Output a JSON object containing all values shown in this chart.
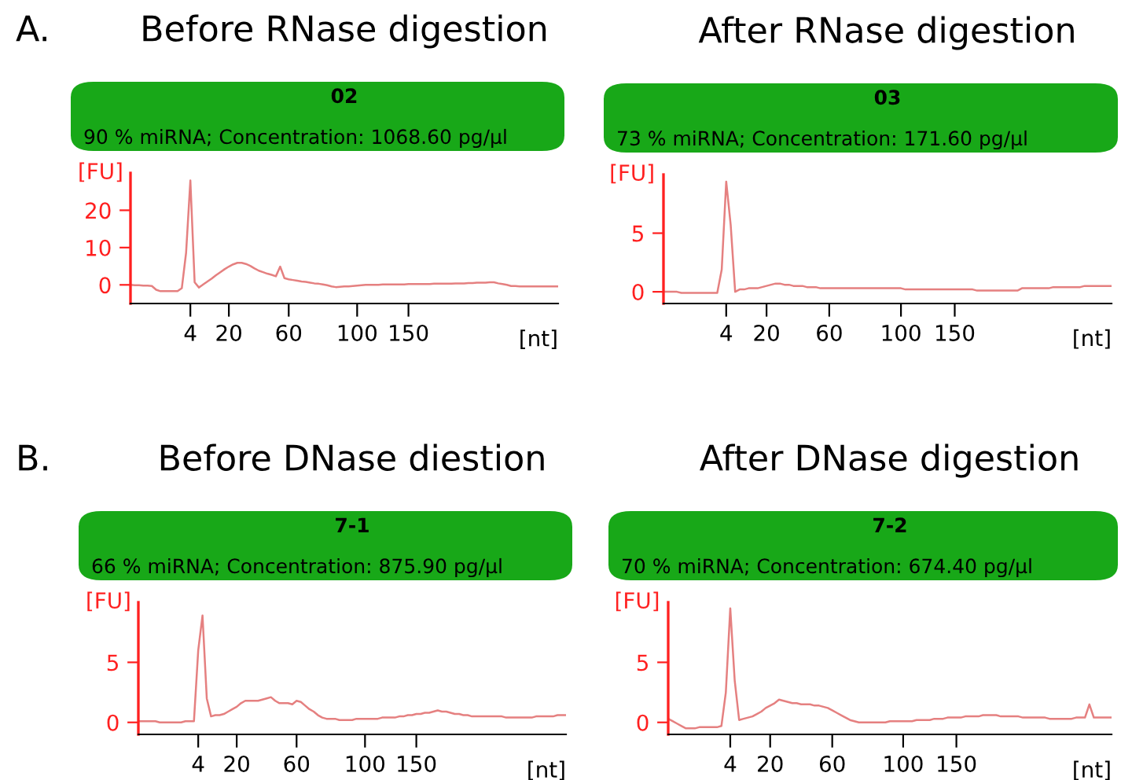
{
  "chart_data": [
    {
      "type": "line",
      "title": "Before RNase digestion",
      "subtitle": "02",
      "annotations": [
        "90 % miRNA; Concentration: 1068.60 pg/µl",
        "A."
      ],
      "xlabel": "[nt]",
      "ylabel": "[FU]",
      "categories": [
        null,
        null,
        null,
        null,
        null,
        null,
        null,
        null,
        null,
        null,
        null,
        null,
        null,
        null,
        "4",
        null,
        null,
        null,
        null,
        null,
        null,
        null,
        null,
        "20",
        null,
        null,
        null,
        null,
        null,
        null,
        null,
        null,
        null,
        null,
        null,
        null,
        null,
        "60",
        null,
        null,
        null,
        null,
        null,
        null,
        null,
        null,
        null,
        null,
        null,
        null,
        null,
        null,
        null,
        "100",
        null,
        null,
        null,
        null,
        null,
        null,
        null,
        null,
        null,
        null,
        null,
        "150",
        null,
        null,
        null,
        null,
        null,
        null,
        null,
        null,
        null,
        null,
        null,
        null,
        null,
        null,
        null,
        null,
        null,
        null,
        null,
        null,
        null,
        null,
        null,
        null,
        null,
        null,
        null,
        null,
        null,
        null,
        null,
        null,
        null,
        null,
        null
      ],
      "series": [
        {
          "color": "#e58080",
          "values": [
            0,
            -0.1,
            -0.1,
            -0.2,
            -0.2,
            -0.3,
            -1.3,
            -1.7,
            -1.7,
            -1.7,
            -1.7,
            -1.7,
            -0.9,
            8.6,
            28,
            0.7,
            -0.7,
            0.1,
            0.9,
            1.7,
            2.6,
            3.4,
            4.2,
            4.9,
            5.5,
            5.9,
            5.9,
            5.6,
            5.1,
            4.4,
            3.8,
            3.4,
            3,
            2.7,
            2.3,
            4.9,
            1.8,
            1.5,
            1.3,
            1.1,
            0.9,
            0.8,
            0.6,
            0.4,
            0.3,
            0.1,
            -0.1,
            -0.4,
            -0.6,
            -0.5,
            -0.4,
            -0.4,
            -0.3,
            -0.2,
            -0.1,
            0,
            0,
            0,
            0,
            0.1,
            0.1,
            0.1,
            0.1,
            0.1,
            0.1,
            0.2,
            0.2,
            0.2,
            0.2,
            0.2,
            0.2,
            0.3,
            0.3,
            0.3,
            0.3,
            0.3,
            0.4,
            0.4,
            0.4,
            0.5,
            0.5,
            0.6,
            0.6,
            0.6,
            0.7,
            0.7,
            0.4,
            0.2,
            0,
            -0.3,
            -0.3,
            -0.4,
            -0.4,
            -0.4,
            -0.4,
            -0.4,
            -0.4,
            -0.4,
            -0.4,
            -0.4,
            -0.4
          ]
        }
      ],
      "ylim": [
        -5,
        30
      ],
      "yticks": [
        0,
        10,
        20
      ]
    },
    {
      "type": "line",
      "title": "After RNase digestion",
      "subtitle": "03",
      "annotations": [
        "73 % miRNA; Concentration: 171.60 pg/µl"
      ],
      "xlabel": "[nt]",
      "ylabel": "[FU]",
      "categories": [
        null,
        null,
        null,
        null,
        null,
        null,
        null,
        null,
        null,
        null,
        null,
        null,
        null,
        null,
        "4",
        null,
        null,
        null,
        null,
        null,
        null,
        null,
        null,
        "20",
        null,
        null,
        null,
        null,
        null,
        null,
        null,
        null,
        null,
        null,
        null,
        null,
        null,
        "60",
        null,
        null,
        null,
        null,
        null,
        null,
        null,
        null,
        null,
        null,
        null,
        null,
        null,
        null,
        null,
        "100",
        null,
        null,
        null,
        null,
        null,
        null,
        null,
        null,
        null,
        null,
        null,
        "150",
        null,
        null,
        null,
        null,
        null,
        null,
        null,
        null,
        null,
        null,
        null,
        null,
        null,
        null,
        null,
        null,
        null,
        null,
        null,
        null,
        null,
        null,
        null,
        null,
        null,
        null,
        null,
        null,
        null,
        null,
        null,
        null,
        null,
        null,
        null
      ],
      "series": [
        {
          "color": "#e58080",
          "values": [
            0,
            0,
            0,
            0,
            -0.1,
            -0.1,
            -0.1,
            -0.1,
            -0.1,
            -0.1,
            -0.1,
            -0.1,
            -0.1,
            1.9,
            9.4,
            5.7,
            0,
            0.2,
            0.2,
            0.3,
            0.3,
            0.3,
            0.4,
            0.5,
            0.6,
            0.7,
            0.7,
            0.6,
            0.6,
            0.5,
            0.5,
            0.5,
            0.4,
            0.4,
            0.4,
            0.3,
            0.3,
            0.3,
            0.3,
            0.3,
            0.3,
            0.3,
            0.3,
            0.3,
            0.3,
            0.3,
            0.3,
            0.3,
            0.3,
            0.3,
            0.3,
            0.3,
            0.3,
            0.3,
            0.2,
            0.2,
            0.2,
            0.2,
            0.2,
            0.2,
            0.2,
            0.2,
            0.2,
            0.2,
            0.2,
            0.2,
            0.2,
            0.2,
            0.2,
            0.2,
            0.1,
            0.1,
            0.1,
            0.1,
            0.1,
            0.1,
            0.1,
            0.1,
            0.1,
            0.1,
            0.3,
            0.3,
            0.3,
            0.3,
            0.3,
            0.3,
            0.3,
            0.4,
            0.4,
            0.4,
            0.4,
            0.4,
            0.4,
            0.4,
            0.5,
            0.5,
            0.5,
            0.5,
            0.5,
            0.5,
            0.5
          ]
        }
      ],
      "ylim": [
        -1,
        10
      ],
      "yticks": [
        0,
        5
      ]
    },
    {
      "type": "line",
      "title": "Before DNase diestion",
      "subtitle": "7-1",
      "annotations": [
        "66 % miRNA; Concentration: 875.90 pg/µl",
        "B."
      ],
      "xlabel": "[nt]",
      "ylabel": "[FU]",
      "categories": [
        null,
        null,
        null,
        null,
        null,
        null,
        null,
        null,
        null,
        null,
        null,
        null,
        null,
        null,
        "4",
        null,
        null,
        null,
        null,
        null,
        null,
        null,
        null,
        "20",
        null,
        null,
        null,
        null,
        null,
        null,
        null,
        null,
        null,
        null,
        null,
        null,
        null,
        "60",
        null,
        null,
        null,
        null,
        null,
        null,
        null,
        null,
        null,
        null,
        null,
        null,
        null,
        null,
        null,
        "100",
        null,
        null,
        null,
        null,
        null,
        null,
        null,
        null,
        null,
        null,
        null,
        "150",
        null,
        null,
        null,
        null,
        null,
        null,
        null,
        null,
        null,
        null,
        null,
        null,
        null,
        null,
        null,
        null,
        null,
        null,
        null,
        null,
        null,
        null,
        null,
        null,
        null,
        null,
        null,
        null,
        null,
        null,
        null,
        null,
        null,
        null,
        null
      ],
      "series": [
        {
          "color": "#e58080",
          "values": [
            0.1,
            0.1,
            0.1,
            0.1,
            0.1,
            0,
            0,
            0,
            0,
            0,
            0,
            0.1,
            0.1,
            0.1,
            6,
            8.9,
            2,
            0.5,
            0.6,
            0.6,
            0.7,
            0.9,
            1.1,
            1.3,
            1.6,
            1.8,
            1.8,
            1.8,
            1.8,
            1.9,
            2,
            2.1,
            1.8,
            1.6,
            1.6,
            1.6,
            1.5,
            1.8,
            1.7,
            1.4,
            1.1,
            0.9,
            0.6,
            0.4,
            0.3,
            0.3,
            0.3,
            0.2,
            0.2,
            0.2,
            0.2,
            0.3,
            0.3,
            0.3,
            0.3,
            0.3,
            0.3,
            0.4,
            0.4,
            0.4,
            0.4,
            0.5,
            0.5,
            0.6,
            0.6,
            0.7,
            0.7,
            0.8,
            0.8,
            0.9,
            1,
            0.9,
            0.9,
            0.8,
            0.7,
            0.7,
            0.6,
            0.6,
            0.5,
            0.5,
            0.5,
            0.5,
            0.5,
            0.5,
            0.5,
            0.5,
            0.4,
            0.4,
            0.4,
            0.4,
            0.4,
            0.4,
            0.4,
            0.5,
            0.5,
            0.5,
            0.5,
            0.5,
            0.6,
            0.6,
            0.6
          ]
        }
      ],
      "ylim": [
        -1,
        10
      ],
      "yticks": [
        0,
        5
      ]
    },
    {
      "type": "line",
      "title": "After DNase digestion",
      "subtitle": "7-2",
      "annotations": [
        "70 % miRNA; Concentration: 674.40 pg/µl"
      ],
      "xlabel": "[nt]",
      "ylabel": "[FU]",
      "categories": [
        null,
        null,
        null,
        null,
        null,
        null,
        null,
        null,
        null,
        null,
        null,
        null,
        null,
        null,
        "4",
        null,
        null,
        null,
        null,
        null,
        null,
        null,
        null,
        "20",
        null,
        null,
        null,
        null,
        null,
        null,
        null,
        null,
        null,
        null,
        null,
        null,
        null,
        "60",
        null,
        null,
        null,
        null,
        null,
        null,
        null,
        null,
        null,
        null,
        null,
        null,
        null,
        null,
        null,
        "100",
        null,
        null,
        null,
        null,
        null,
        null,
        null,
        null,
        null,
        null,
        null,
        "150",
        null,
        null,
        null,
        null,
        null,
        null,
        null,
        null,
        null,
        null,
        null,
        null,
        null,
        null,
        null,
        null,
        null,
        null,
        null,
        null,
        null,
        null,
        null,
        null,
        null,
        null,
        null,
        null,
        null,
        null,
        null,
        null,
        null,
        null,
        null
      ],
      "series": [
        {
          "color": "#e58080",
          "values": [
            0.3,
            0.1,
            -0.1,
            -0.3,
            -0.5,
            -0.5,
            -0.5,
            -0.4,
            -0.4,
            -0.4,
            -0.4,
            -0.4,
            -0.3,
            2.5,
            9.5,
            3.5,
            0.2,
            0.3,
            0.4,
            0.5,
            0.7,
            0.9,
            1.2,
            1.4,
            1.6,
            1.9,
            1.8,
            1.7,
            1.6,
            1.6,
            1.5,
            1.5,
            1.5,
            1.4,
            1.4,
            1.3,
            1.2,
            1,
            0.8,
            0.6,
            0.4,
            0.2,
            0.1,
            0,
            0,
            0,
            0,
            0,
            0,
            0,
            0.1,
            0.1,
            0.1,
            0.1,
            0.1,
            0.1,
            0.2,
            0.2,
            0.2,
            0.2,
            0.3,
            0.3,
            0.3,
            0.4,
            0.4,
            0.4,
            0.4,
            0.5,
            0.5,
            0.5,
            0.5,
            0.6,
            0.6,
            0.6,
            0.6,
            0.5,
            0.5,
            0.5,
            0.5,
            0.5,
            0.4,
            0.4,
            0.4,
            0.4,
            0.4,
            0.4,
            0.3,
            0.3,
            0.3,
            0.3,
            0.3,
            0.3,
            0.4,
            0.4,
            0.4,
            1.5,
            0.4,
            0.4,
            0.4,
            0.4,
            0.4
          ]
        }
      ],
      "ylim": [
        -1,
        10
      ],
      "yticks": [
        0,
        5
      ]
    }
  ]
}
